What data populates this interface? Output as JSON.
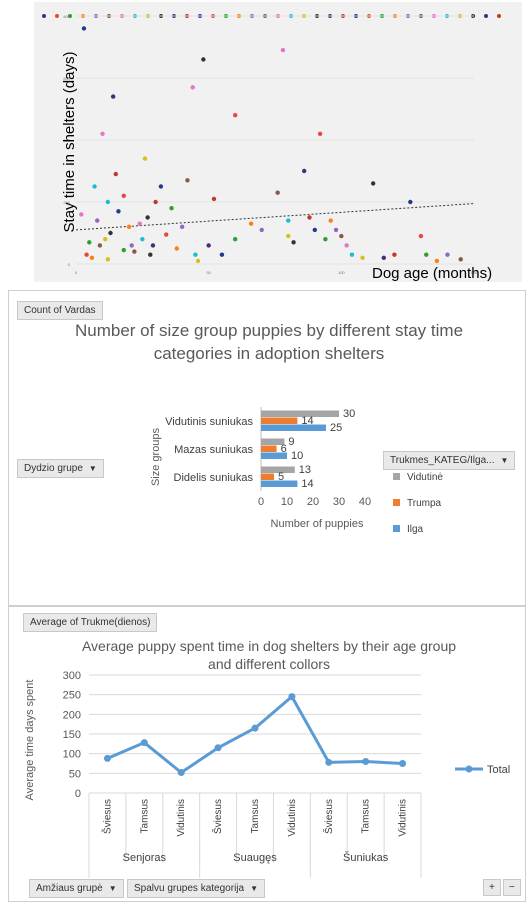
{
  "chart_data": [
    {
      "type": "scatter",
      "xlabel": "Dog age (months)",
      "ylabel": "Stay time in shelters (days)",
      "xlim": [
        0,
        150
      ],
      "ylim": [
        0,
        800
      ],
      "x_ticks": [
        "0",
        "50",
        "100",
        "150"
      ],
      "y_ticks": [
        "0",
        "200",
        "400",
        "600",
        "800"
      ],
      "trendline": {
        "style": "dotted",
        "from": [
          0,
          110
        ],
        "to": [
          150,
          195
        ]
      },
      "points": [
        [
          3,
          760
        ],
        [
          4,
          30
        ],
        [
          5,
          70
        ],
        [
          6,
          20
        ],
        [
          8,
          140
        ],
        [
          9,
          60
        ],
        [
          10,
          420
        ],
        [
          12,
          200
        ],
        [
          12,
          15
        ],
        [
          13,
          100
        ],
        [
          14,
          540
        ],
        [
          15,
          290
        ],
        [
          16,
          170
        ],
        [
          18,
          220
        ],
        [
          18,
          45
        ],
        [
          20,
          120
        ],
        [
          21,
          60
        ],
        [
          22,
          40
        ],
        [
          24,
          130
        ],
        [
          25,
          80
        ],
        [
          26,
          340
        ],
        [
          28,
          30
        ],
        [
          29,
          60
        ],
        [
          30,
          200
        ],
        [
          32,
          250
        ],
        [
          34,
          95
        ],
        [
          36,
          180
        ],
        [
          38,
          50
        ],
        [
          40,
          120
        ],
        [
          42,
          270
        ],
        [
          44,
          570
        ],
        [
          45,
          30
        ],
        [
          46,
          10
        ],
        [
          48,
          660
        ],
        [
          50,
          60
        ],
        [
          52,
          210
        ],
        [
          55,
          30
        ],
        [
          60,
          480
        ],
        [
          60,
          80
        ],
        [
          66,
          130
        ],
        [
          70,
          110
        ],
        [
          76,
          230
        ],
        [
          78,
          690
        ],
        [
          80,
          140
        ],
        [
          80,
          90
        ],
        [
          82,
          70
        ],
        [
          86,
          300
        ],
        [
          88,
          150
        ],
        [
          90,
          110
        ],
        [
          92,
          420
        ],
        [
          94,
          80
        ],
        [
          96,
          140
        ],
        [
          98,
          110
        ],
        [
          100,
          90
        ],
        [
          102,
          60
        ],
        [
          104,
          30
        ],
        [
          108,
          20
        ],
        [
          112,
          260
        ],
        [
          116,
          20
        ],
        [
          120,
          30
        ],
        [
          126,
          200
        ],
        [
          130,
          90
        ],
        [
          132,
          30
        ],
        [
          136,
          10
        ],
        [
          140,
          30
        ],
        [
          145,
          15
        ],
        [
          2,
          160
        ],
        [
          7,
          250
        ],
        [
          11,
          80
        ],
        [
          27,
          150
        ]
      ]
    },
    {
      "type": "bar",
      "orientation": "horizontal",
      "title": "Number of size group puppies by different stay time categories in adoption shelters",
      "xlabel": "Number of puppies",
      "ylabel": "Size groups",
      "xlim": [
        0,
        40
      ],
      "x_ticks": [
        "0",
        "10",
        "20",
        "30",
        "40"
      ],
      "categories": [
        "Vidutinis suniukas",
        "Mazas suniukas",
        "Didelis suniukas"
      ],
      "series": [
        {
          "name": "Vidutinė",
          "color": "#a5a5a5",
          "values": [
            30,
            9,
            13
          ]
        },
        {
          "name": "Trumpa",
          "color": "#ed7d31",
          "values": [
            14,
            6,
            5
          ]
        },
        {
          "name": "Ilga",
          "color": "#5b9bd5",
          "values": [
            25,
            10,
            14
          ]
        }
      ]
    },
    {
      "type": "line",
      "title": "Average puppy spent time in dog shelters by their age group and different collors",
      "ylabel": "Average time days spent",
      "ylim": [
        0,
        300
      ],
      "y_ticks": [
        "0",
        "50",
        "100",
        "150",
        "200",
        "250",
        "300"
      ],
      "groups": [
        "Senjoras",
        "Suaugęs",
        "Šuniukas"
      ],
      "categories": [
        "Šviesus",
        "Tamsus",
        "Vidutinis",
        "Šviesus",
        "Tamsus",
        "Vidutinis",
        "Šviesus",
        "Tamsus",
        "Vidutinis"
      ],
      "series": [
        {
          "name": "Total",
          "color": "#5b9bd5",
          "values": [
            88,
            128,
            52,
            115,
            165,
            245,
            78,
            80,
            75
          ]
        }
      ]
    }
  ],
  "pivot": {
    "value_field": "Count of Vardas",
    "row_field": "Dydzio grupe",
    "legend_field": "Trukmes_KATEG/Ilga...",
    "line_value_field": "Average of Trukme(dienos)",
    "axis_fields": [
      "Amžiaus grupė",
      "Spalvu grupes kategorija"
    ],
    "zoom_in": "+",
    "zoom_out": "−"
  }
}
